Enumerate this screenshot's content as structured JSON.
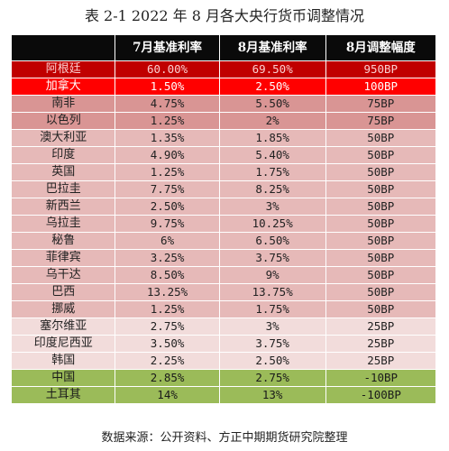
{
  "title": "表 2-1 2022 年 8 月各大央行货币调整情况",
  "table": {
    "headers": [
      "",
      "7月基准利率",
      "8月基准利率",
      "8月调整幅度"
    ],
    "rows": [
      {
        "country": "阿根廷",
        "july": "60.00%",
        "aug": "69.50%",
        "change": "950BP",
        "group": "g-strong"
      },
      {
        "country": "加拿大",
        "july": "1.50%",
        "aug": "2.50%",
        "change": "100BP",
        "group": "g-red"
      },
      {
        "country": "南非",
        "july": "4.75%",
        "aug": "5.50%",
        "change": "75BP",
        "group": "g-hike75"
      },
      {
        "country": "以色列",
        "july": "1.25%",
        "aug": "2%",
        "change": "75BP",
        "group": "g-hike75"
      },
      {
        "country": "澳大利亚",
        "july": "1.35%",
        "aug": "1.85%",
        "change": "50BP",
        "group": "g-hike50"
      },
      {
        "country": "印度",
        "july": "4.90%",
        "aug": "5.40%",
        "change": "50BP",
        "group": "g-hike50"
      },
      {
        "country": "英国",
        "july": "1.25%",
        "aug": "1.75%",
        "change": "50BP",
        "group": "g-hike50"
      },
      {
        "country": "巴拉圭",
        "july": "7.75%",
        "aug": "8.25%",
        "change": "50BP",
        "group": "g-hike50"
      },
      {
        "country": "新西兰",
        "july": "2.50%",
        "aug": "3%",
        "change": "50BP",
        "group": "g-hike50"
      },
      {
        "country": "乌拉圭",
        "july": "9.75%",
        "aug": "10.25%",
        "change": "50BP",
        "group": "g-hike50"
      },
      {
        "country": "秘鲁",
        "july": "6%",
        "aug": "6.50%",
        "change": "50BP",
        "group": "g-hike50"
      },
      {
        "country": "菲律宾",
        "july": "3.25%",
        "aug": "3.75%",
        "change": "50BP",
        "group": "g-hike50"
      },
      {
        "country": "乌干达",
        "july": "8.50%",
        "aug": "9%",
        "change": "50BP",
        "group": "g-hike50"
      },
      {
        "country": "巴西",
        "july": "13.25%",
        "aug": "13.75%",
        "change": "50BP",
        "group": "g-hike50"
      },
      {
        "country": "挪威",
        "july": "1.25%",
        "aug": "1.75%",
        "change": "50BP",
        "group": "g-hike50"
      },
      {
        "country": "塞尔维亚",
        "july": "2.75%",
        "aug": "3%",
        "change": "25BP",
        "group": "g-hike25"
      },
      {
        "country": "印度尼西亚",
        "july": "3.50%",
        "aug": "3.75%",
        "change": "25BP",
        "group": "g-hike25"
      },
      {
        "country": "韩国",
        "july": "2.25%",
        "aug": "2.50%",
        "change": "25BP",
        "group": "g-hike25"
      },
      {
        "country": "中国",
        "july": "2.85%",
        "aug": "2.75%",
        "change": "-10BP",
        "group": "g-cut"
      },
      {
        "country": "土耳其",
        "july": "14%",
        "aug": "13%",
        "change": "-100BP",
        "group": "g-cut"
      }
    ]
  },
  "source": "数据来源：公开资料、方正中期期货研究院整理",
  "colors": {
    "header_bg": "#0a0a0a",
    "strong_hike": "#c00000",
    "large_hike": "#ff0000",
    "hike_75": "#d99594",
    "hike_50": "#e6b9b8",
    "hike_25": "#f2dcdb",
    "cut": "#9bbb59"
  }
}
